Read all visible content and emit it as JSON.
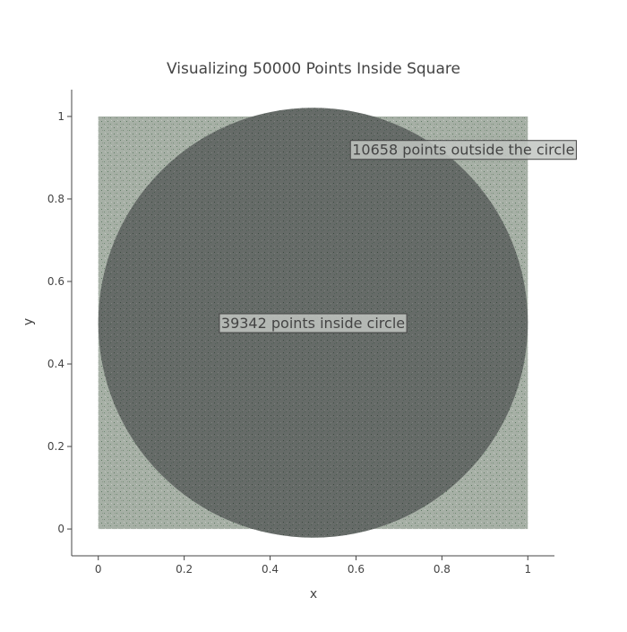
{
  "chart_data": {
    "type": "scatter",
    "title": "Visualizing 50000 Points Inside Square",
    "xlabel": "x",
    "ylabel": "y",
    "xlim": [
      -0.062,
      1.062
    ],
    "ylim": [
      -0.065,
      1.065
    ],
    "x_ticks": [
      0,
      0.2,
      0.4,
      0.6,
      0.8,
      1
    ],
    "y_ticks": [
      0,
      0.2,
      0.4,
      0.6,
      0.8,
      1
    ],
    "x_tick_labels": [
      "0",
      "0.2",
      "0.4",
      "0.6",
      "0.8",
      "1"
    ],
    "y_tick_labels": [
      "0",
      "0.2",
      "0.4",
      "0.6",
      "0.8",
      "1"
    ],
    "grid": false,
    "square": {
      "x0": 0,
      "y0": 0,
      "x1": 1,
      "y1": 1
    },
    "circle": {
      "cx": 0.5,
      "cy": 0.5,
      "r": 0.5
    },
    "total_points": 50000,
    "points_inside": 39342,
    "points_outside": 10658,
    "annotations": [
      {
        "text": "39342 points inside circle",
        "x": 0.5,
        "y": 0.5
      },
      {
        "text": "10658 points outside the circle",
        "x": 0.85,
        "y": 0.92
      }
    ],
    "colors": {
      "outside_points": "#a7b0a6",
      "inside_points": "#666b68",
      "dot_speckle": "#4f6b55",
      "axis": "#444444",
      "annotation_bg": "#c2c6c2",
      "annotation_border": "#444444"
    }
  }
}
